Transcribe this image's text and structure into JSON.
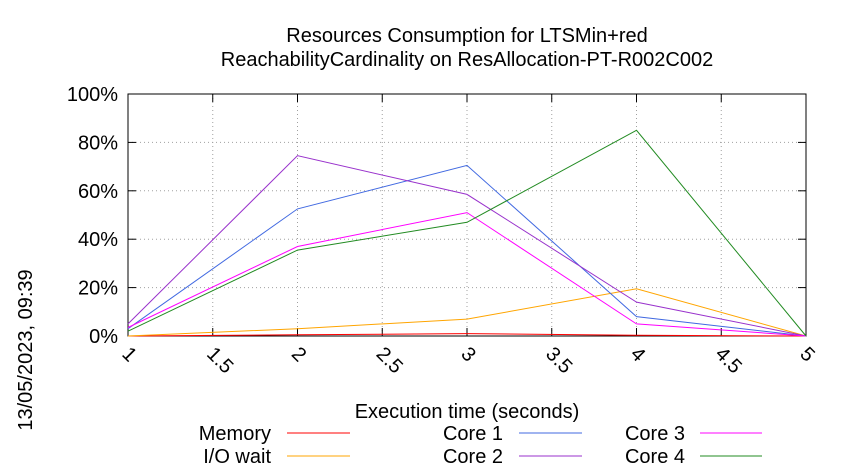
{
  "chart_data": {
    "type": "line",
    "title": "Resources Consumption for LTSMin+red",
    "subtitle": "ReachabilityCardinality on ResAllocation-PT-R002C002",
    "xlabel": "Execution time (seconds)",
    "ylabel": "",
    "side_label": "13/05/2023, 09:39",
    "xlim": [
      1,
      5
    ],
    "ylim": [
      0,
      100
    ],
    "x_ticks": [
      1,
      1.5,
      2,
      2.5,
      3,
      3.5,
      4,
      4.5,
      5
    ],
    "x_tick_labels": [
      "1",
      "1.5",
      "2",
      "2.5",
      "3",
      "3.5",
      "4",
      "4.5",
      "5"
    ],
    "y_ticks": [
      0,
      20,
      40,
      60,
      80,
      100
    ],
    "y_tick_labels": [
      "0%",
      "20%",
      "40%",
      "60%",
      "80%",
      "100%"
    ],
    "grid": true,
    "legend_position": "bottom",
    "x": [
      1,
      2,
      3,
      4,
      5
    ],
    "series": [
      {
        "name": "Memory",
        "color": "#ff0000",
        "values": [
          0,
          0.5,
          1,
          0.3,
          0
        ]
      },
      {
        "name": "I/O wait",
        "color": "#ffa500",
        "values": [
          0,
          3,
          7,
          19.5,
          0
        ]
      },
      {
        "name": "Core 1",
        "color": "#4169e1",
        "values": [
          3,
          52.5,
          70.5,
          8,
          0
        ]
      },
      {
        "name": "Core 2",
        "color": "#9932cc",
        "values": [
          5,
          74.5,
          58.5,
          14,
          0
        ]
      },
      {
        "name": "Core 3",
        "color": "#ff00ff",
        "values": [
          3.5,
          37,
          51,
          5,
          0
        ]
      },
      {
        "name": "Core 4",
        "color": "#228b22",
        "values": [
          2,
          35.5,
          47,
          85,
          0
        ]
      }
    ]
  }
}
